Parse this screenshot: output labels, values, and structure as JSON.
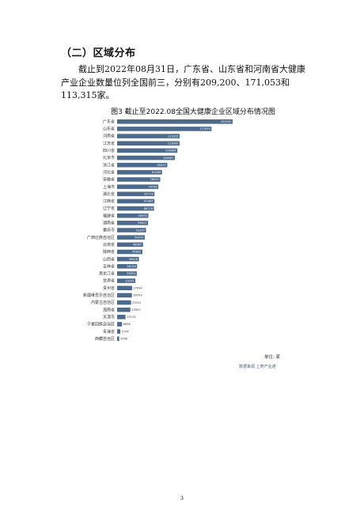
{
  "document": {
    "section_heading": "（二）区域分布",
    "paragraph": "截止到2022年08月31日，广东省、山东省和河南省大健康产业企业数量位列全国前三，分别有209,200、171,053和113,315家。",
    "page_number": "3"
  },
  "chart_data": {
    "type": "bar",
    "orientation": "horizontal",
    "title": "图3 截止至2022.08全国大健康企业区域分布情况图",
    "unit_label": "单位: 家",
    "source": "数据来源 上奇产业通",
    "categories": [
      "广东省",
      "山东省",
      "河南省",
      "江苏省",
      "四川省",
      "北京市",
      "浙江省",
      "河北省",
      "安徽省",
      "上海市",
      "湖北省",
      "江西省",
      "辽宁省",
      "福建省",
      "湖南省",
      "重庆市",
      "广西壮族自治区",
      "云南省",
      "陕西省",
      "山西省",
      "吉林省",
      "黑龙江省",
      "甘肃省",
      "贵州省",
      "新疆维吾尔自治区",
      "内蒙古自治区",
      "海南省",
      "天津市",
      "宁夏回族自治区",
      "青海省",
      "西藏自治区"
    ],
    "values": [
      209200,
      171053,
      113315,
      113092,
      109084,
      104667,
      90937,
      81289,
      78040,
      74708,
      67716,
      67484,
      66718,
      56592,
      56022,
      52347,
      50070,
      46967,
      45802,
      39616,
      36158,
      35624,
      33105,
      27090,
      26799,
      25311,
      23937,
      15215,
      8858,
      5744,
      3760
    ],
    "xlim": [
      0,
      209200
    ],
    "grid": false,
    "legend": "none"
  }
}
